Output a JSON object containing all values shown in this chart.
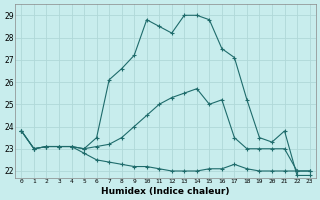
{
  "xlabel": "Humidex (Indice chaleur)",
  "ylabel": "",
  "xlim": [
    -0.5,
    23.5
  ],
  "ylim": [
    21.7,
    29.5
  ],
  "yticks": [
    22,
    23,
    24,
    25,
    26,
    27,
    28,
    29
  ],
  "xticks": [
    0,
    1,
    2,
    3,
    4,
    5,
    6,
    7,
    8,
    9,
    10,
    11,
    12,
    13,
    14,
    15,
    16,
    17,
    18,
    19,
    20,
    21,
    22,
    23
  ],
  "bg_color": "#c8eded",
  "line_color": "#1e6b6b",
  "grid_color": "#b0d8d8",
  "line1": [
    23.8,
    23.0,
    23.1,
    23.1,
    23.1,
    23.0,
    23.5,
    26.1,
    26.6,
    27.2,
    28.8,
    28.5,
    28.2,
    29.0,
    29.0,
    28.8,
    27.5,
    27.1,
    25.2,
    23.5,
    23.3,
    23.8,
    21.8,
    21.8
  ],
  "line2": [
    23.8,
    23.0,
    23.1,
    23.1,
    23.1,
    23.0,
    23.1,
    23.2,
    23.5,
    24.0,
    24.5,
    25.0,
    25.3,
    25.5,
    25.7,
    25.0,
    25.2,
    23.5,
    23.0,
    23.0,
    23.0,
    23.0,
    22.0,
    22.0
  ],
  "line3": [
    23.8,
    23.0,
    23.1,
    23.1,
    23.1,
    22.8,
    22.5,
    22.4,
    22.3,
    22.2,
    22.2,
    22.1,
    22.0,
    22.0,
    22.0,
    22.1,
    22.1,
    22.3,
    22.1,
    22.0,
    22.0,
    22.0,
    22.0,
    22.0
  ]
}
